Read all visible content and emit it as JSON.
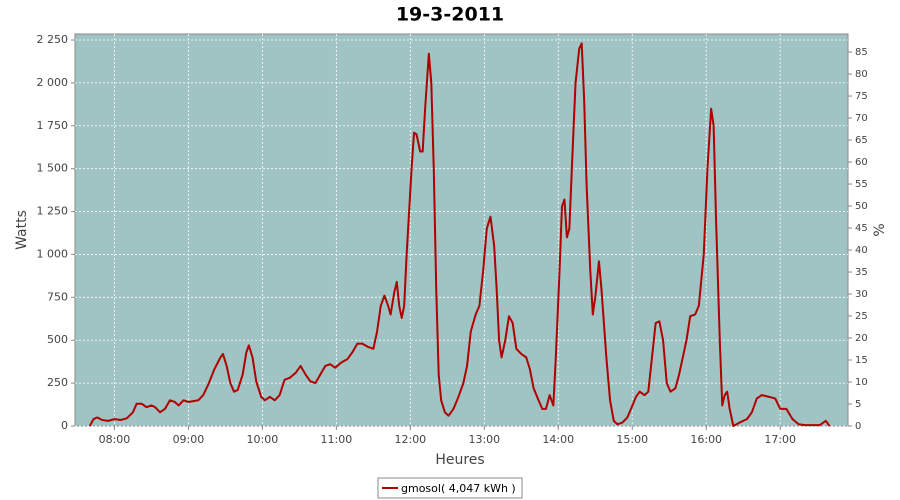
{
  "chart_data": {
    "type": "line",
    "title": "19-3-2011",
    "xlabel": "Heures",
    "ylabel": "Watts",
    "y2label": "%",
    "xlim": [
      "07:28",
      "17:55"
    ],
    "xticks": [
      "08:00",
      "09:00",
      "10:00",
      "11:00",
      "12:00",
      "13:00",
      "14:00",
      "15:00",
      "16:00",
      "17:00"
    ],
    "ylim": [
      0,
      2285
    ],
    "yticks": [
      0,
      250,
      500,
      750,
      {
        "value": 1000,
        "label": "1 000"
      },
      {
        "value": 1250,
        "label": "1 250"
      },
      {
        "value": 1500,
        "label": "1 500"
      },
      {
        "value": 1750,
        "label": "1 750"
      },
      {
        "value": 2000,
        "label": "2 000"
      },
      {
        "value": 2250,
        "label": "2 250"
      }
    ],
    "y2lim": [
      0,
      89.1
    ],
    "y2ticks": [
      0,
      5,
      10,
      15,
      20,
      25,
      30,
      35,
      40,
      45,
      50,
      55,
      60,
      65,
      70,
      75,
      80,
      85
    ],
    "grid": true,
    "legend": "bottom",
    "x": [
      "07:40",
      "07:43",
      "07:46",
      "07:50",
      "07:55",
      "08:00",
      "08:05",
      "08:10",
      "08:15",
      "08:18",
      "08:22",
      "08:26",
      "08:30",
      "08:33",
      "08:37",
      "08:41",
      "08:45",
      "08:49",
      "08:52",
      "08:56",
      "09:00",
      "09:08",
      "09:12",
      "09:16",
      "09:21",
      "09:26",
      "09:28",
      "09:31",
      "09:34",
      "09:37",
      "09:40",
      "09:44",
      "09:47",
      "09:49",
      "09:52",
      "09:55",
      "09:59",
      "10:02",
      "10:06",
      "10:10",
      "10:14",
      "10:18",
      "10:22",
      "10:27",
      "10:31",
      "10:35",
      "10:39",
      "10:43",
      "10:47",
      "10:51",
      "10:55",
      "10:59",
      "11:04",
      "11:09",
      "11:13",
      "11:17",
      "11:21",
      "11:26",
      "11:30",
      "11:33",
      "11:36",
      "11:39",
      "11:42",
      "11:44",
      "11:47",
      "11:49",
      "11:51",
      "11:53",
      "11:55",
      "11:57",
      "12:01",
      "12:03",
      "12:05",
      "12:08",
      "12:10",
      "12:12",
      "12:15",
      "12:17",
      "12:19",
      "12:21",
      "12:23",
      "12:25",
      "12:28",
      "12:31",
      "12:35",
      "12:39",
      "12:43",
      "12:46",
      "12:49",
      "12:53",
      "12:56",
      "12:59",
      "13:02",
      "13:05",
      "13:08",
      "13:10",
      "13:12",
      "13:14",
      "13:17",
      "13:20",
      "13:23",
      "13:26",
      "13:30",
      "13:34",
      "13:37",
      "13:40",
      "13:44",
      "13:47",
      "13:50",
      "13:53",
      "13:56",
      "13:58",
      "14:01",
      "14:03",
      "14:05",
      "14:07",
      "14:09",
      "14:11",
      "14:14",
      "14:17",
      "14:19",
      "14:21",
      "14:23",
      "14:26",
      "14:28",
      "14:30",
      "14:33",
      "14:35",
      "14:39",
      "14:42",
      "14:45",
      "14:48",
      "14:52",
      "14:56",
      "14:59",
      "15:03",
      "15:06",
      "15:10",
      "15:13",
      "15:16",
      "15:19",
      "15:22",
      "15:25",
      "15:28",
      "15:31",
      "15:35",
      "15:38",
      "15:44",
      "15:47",
      "15:51",
      "15:54",
      "15:58",
      "16:01",
      "16:04",
      "16:06",
      "16:08",
      "16:11",
      "16:13",
      "16:15",
      "16:17",
      "16:19",
      "16:22",
      "16:27",
      "16:33",
      "16:37",
      "16:41",
      "16:45",
      "16:51",
      "16:56",
      "17:00",
      "17:05",
      "17:10",
      "17:15",
      "17:20",
      "17:32",
      "17:35",
      "17:37",
      "17:40"
    ],
    "series": [
      {
        "name": "gmosol( 4,047 kWh )",
        "color": "#b00000",
        "values": [
          0,
          40,
          50,
          35,
          30,
          40,
          35,
          45,
          80,
          130,
          130,
          110,
          120,
          110,
          80,
          100,
          150,
          140,
          120,
          150,
          140,
          150,
          180,
          240,
          330,
          400,
          420,
          350,
          250,
          200,
          210,
          300,
          430,
          470,
          400,
          260,
          170,
          150,
          170,
          150,
          180,
          270,
          280,
          310,
          350,
          300,
          260,
          250,
          300,
          350,
          360,
          340,
          370,
          390,
          430,
          480,
          480,
          460,
          450,
          550,
          700,
          760,
          700,
          650,
          780,
          840,
          700,
          630,
          700,
          1000,
          1500,
          1710,
          1700,
          1600,
          1600,
          1850,
          2170,
          2000,
          1500,
          800,
          300,
          150,
          80,
          60,
          100,
          170,
          250,
          350,
          550,
          650,
          700,
          900,
          1150,
          1220,
          1050,
          800,
          500,
          400,
          500,
          640,
          600,
          450,
          420,
          400,
          330,
          220,
          150,
          100,
          100,
          180,
          120,
          400,
          900,
          1280,
          1320,
          1100,
          1150,
          1500,
          2000,
          2200,
          2230,
          1900,
          1400,
          900,
          650,
          750,
          960,
          800,
          400,
          150,
          30,
          10,
          20,
          50,
          100,
          170,
          200,
          180,
          200,
          400,
          600,
          610,
          500,
          250,
          200,
          220,
          300,
          500,
          640,
          650,
          700,
          1000,
          1500,
          1850,
          1750,
          1200,
          500,
          120,
          180,
          200,
          100,
          0,
          20,
          40,
          80,
          160,
          180,
          170,
          160,
          100,
          100,
          40,
          10,
          5,
          5,
          20,
          30,
          0
        ]
      }
    ]
  }
}
